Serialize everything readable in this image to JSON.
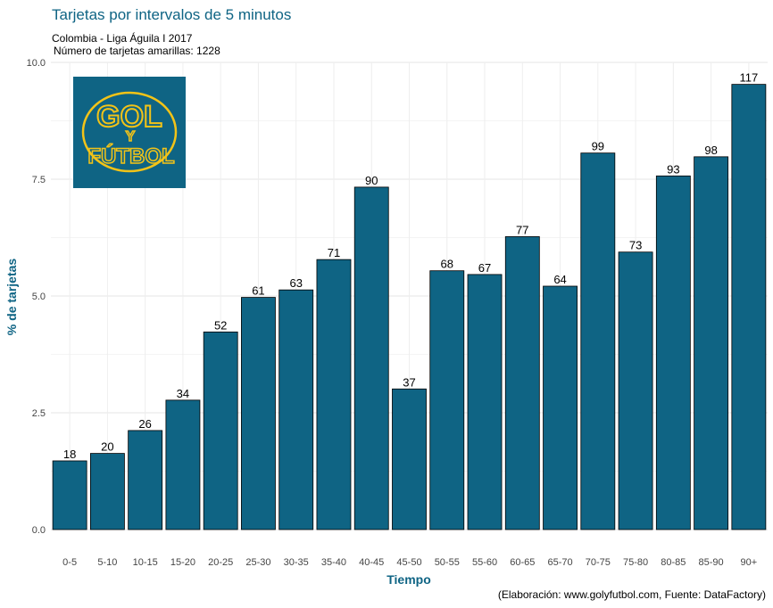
{
  "chart_data": {
    "type": "bar",
    "title": "Tarjetas por intervalos de 5 minutos",
    "subtitle_line1": "Colombia - Liga Águila I 2017",
    "subtitle_line2": "Número de tarjetas amarillas: 1228",
    "caption": "(Elaboración: www.golyfutbol.com, Fuente: DataFactory)",
    "xlabel": "Tiempo",
    "ylabel": "% de tarjetas",
    "categories": [
      "0-5",
      "5-10",
      "10-15",
      "15-20",
      "20-25",
      "25-30",
      "30-35",
      "35-40",
      "40-45",
      "45-50",
      "50-55",
      "55-60",
      "60-65",
      "65-70",
      "70-75",
      "75-80",
      "80-85",
      "85-90",
      "90+"
    ],
    "values": [
      1.47,
      1.63,
      2.12,
      2.77,
      4.23,
      4.97,
      5.13,
      5.78,
      7.33,
      3.01,
      5.54,
      5.46,
      6.27,
      5.21,
      8.06,
      5.94,
      7.57,
      7.98,
      9.53
    ],
    "data_labels": [
      "18",
      "20",
      "26",
      "34",
      "52",
      "61",
      "63",
      "71",
      "90",
      "37",
      "68",
      "67",
      "77",
      "64",
      "99",
      "73",
      "93",
      "98",
      "117"
    ],
    "ylim": [
      0,
      10
    ],
    "yticks": [
      "0.0",
      "2.5",
      "5.0",
      "7.5",
      "10.0"
    ],
    "grid": true,
    "bar_color": "#0f6484",
    "logo": {
      "line1": "GOL",
      "line2": "Y",
      "line3": "FÚTBOL",
      "bg_color": "#0f6484",
      "text_color": "#f2c318"
    }
  }
}
